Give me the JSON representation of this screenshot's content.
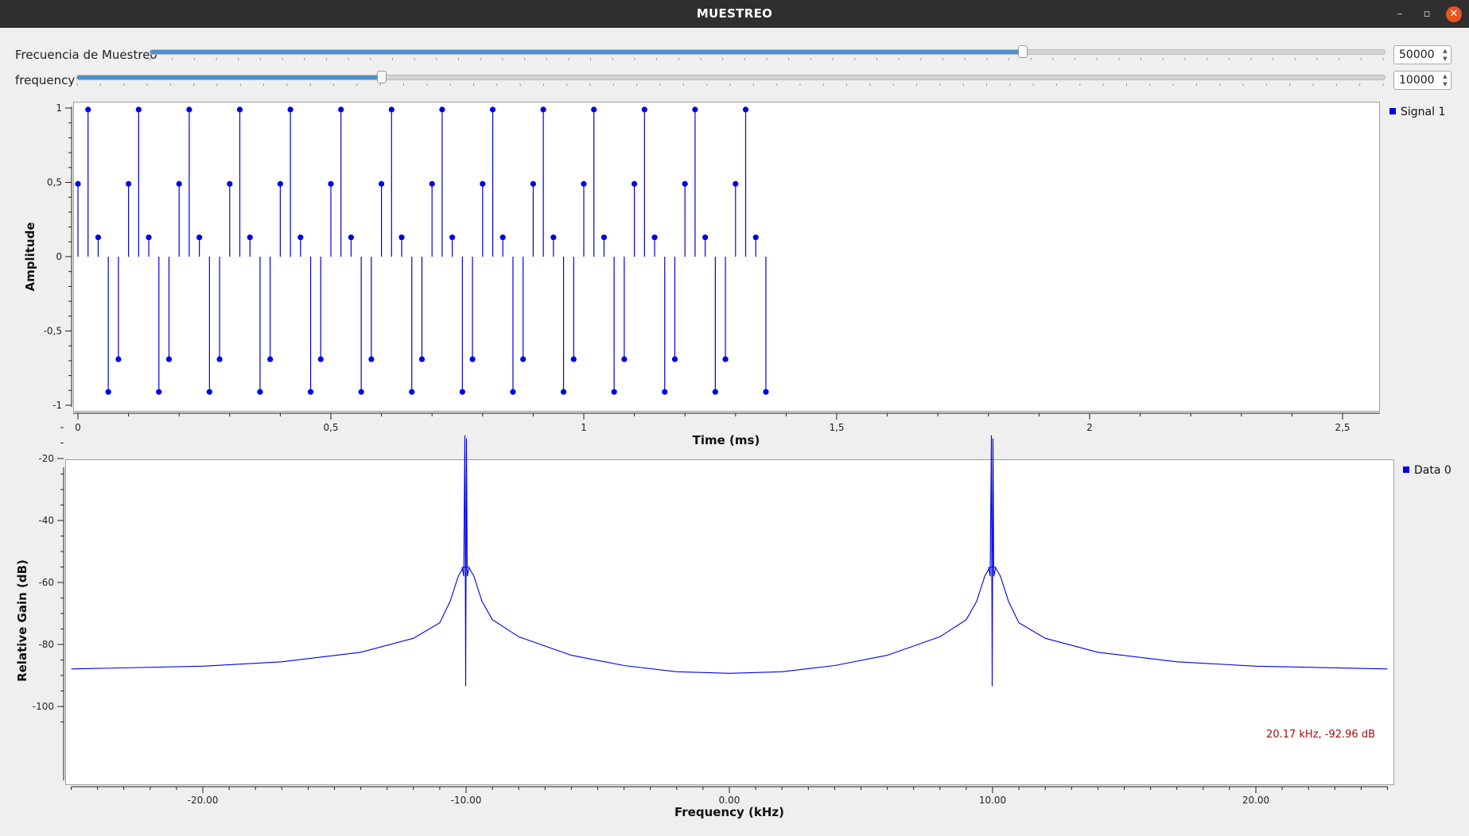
{
  "window": {
    "title": "MUESTREO",
    "controls": {
      "minimize": "–",
      "maximize": "▫",
      "close": "✕"
    }
  },
  "controls": {
    "sampling_rate": {
      "label": "Frecuencia de Muestreo",
      "value": "50000",
      "position_fraction": 0.707
    },
    "frequency": {
      "label": "frequency",
      "value": "10000",
      "position_fraction": 0.233
    }
  },
  "colors": {
    "signal": "#0000e6",
    "marker_text": "#a01010",
    "slider_fill": "#4a8fd0"
  },
  "chart_data": [
    {
      "type": "stem",
      "title": "",
      "xlabel": "Time (ms)",
      "ylabel": "Amplitude",
      "xlim": [
        0,
        2.56
      ],
      "ylim": [
        -1,
        1
      ],
      "x_ticks": [
        0,
        0.5,
        1,
        1.5,
        2,
        2.5
      ],
      "x_tick_labels": [
        "0",
        "0,5",
        "1",
        "1,5",
        "2",
        "2,5"
      ],
      "y_ticks": [
        1,
        0.5,
        0,
        -0.5,
        -1
      ],
      "y_tick_labels": [
        "1",
        "0,5",
        "0",
        "-0,5",
        "-1"
      ],
      "legend": {
        "entries": [
          "Signal 1"
        ],
        "placement": "top-right, outside"
      },
      "sample_period_ms": 0.02,
      "cycle_values": [
        0.49,
        0.99,
        0.13,
        -0.91,
        -0.69
      ],
      "num_samples": 69,
      "series": [
        {
          "name": "Signal 1"
        }
      ]
    },
    {
      "type": "line",
      "title": "",
      "xlabel": "Frequency (kHz)",
      "ylabel": "Relative Gain (dB)",
      "xlim": [
        -25,
        25
      ],
      "ylim": [
        -105,
        -10
      ],
      "x_ticks": [
        -20,
        -10,
        0,
        10,
        20
      ],
      "x_tick_labels": [
        "-20.00",
        "-10.00",
        "0.00",
        "10.00",
        "20.00"
      ],
      "y_ticks": [
        -20,
        -40,
        -60,
        -80,
        -100
      ],
      "y_tick_labels": [
        "-20",
        "-40",
        "-60",
        "-80",
        "-100"
      ],
      "legend": {
        "entries": [
          "Data 0"
        ],
        "placement": "top-right, outside"
      },
      "marker_readout": "20.17 kHz, -92.96 dB",
      "series": [
        {
          "name": "Data 0",
          "peaks_khz": [
            -10,
            10
          ],
          "peak_db": -12.5,
          "sidelobe_db": -55,
          "notch_db": -93.5,
          "baseline_points": [
            [
              -25,
              -87.9
            ],
            [
              -20,
              -87.0
            ],
            [
              -17,
              -85.6
            ],
            [
              -14,
              -82.5
            ],
            [
              -12,
              -78.0
            ],
            [
              -11,
              -73.0
            ],
            [
              -10.6,
              -66.0
            ],
            [
              -10.3,
              -58.0
            ],
            [
              -10.1,
              -55.0
            ],
            [
              -9.9,
              -55.0
            ],
            [
              -9.7,
              -58.0
            ],
            [
              -9.4,
              -66.0
            ],
            [
              -9,
              -72.0
            ],
            [
              -8,
              -77.5
            ],
            [
              -6,
              -83.5
            ],
            [
              -4,
              -86.8
            ],
            [
              -2,
              -88.8
            ],
            [
              0,
              -89.3
            ],
            [
              2,
              -88.8
            ],
            [
              4,
              -86.8
            ],
            [
              6,
              -83.5
            ],
            [
              8,
              -77.5
            ],
            [
              9,
              -72.0
            ],
            [
              9.4,
              -66.0
            ],
            [
              9.7,
              -58.0
            ],
            [
              9.9,
              -55.0
            ],
            [
              10.1,
              -55.0
            ],
            [
              10.3,
              -58.0
            ],
            [
              10.6,
              -66.0
            ],
            [
              11,
              -73.0
            ],
            [
              12,
              -78.0
            ],
            [
              14,
              -82.5
            ],
            [
              17,
              -85.6
            ],
            [
              20,
              -87.0
            ],
            [
              25,
              -87.9
            ]
          ]
        }
      ]
    }
  ]
}
